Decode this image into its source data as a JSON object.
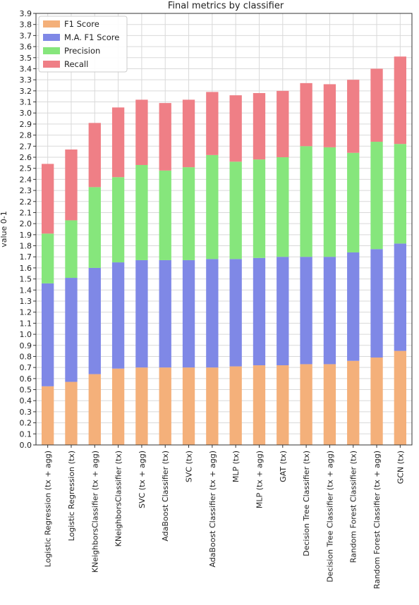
{
  "chart_data": {
    "type": "bar",
    "stacked": true,
    "title": "Final metrics by classifier",
    "xlabel": "",
    "ylabel": "value 0-1",
    "ylim": [
      0,
      3.9
    ],
    "ytick_step": 0.1,
    "grid": true,
    "legend_position": "top-left",
    "categories": [
      "Logistic Regression (tx + agg)",
      "Logistic Regression (tx)",
      "KNeighborsClassifier (tx + agg)",
      "KNeighborsClassifier (tx)",
      "SVC (tx + agg)",
      "AdaBoost Classifier (tx)",
      "SVC (tx)",
      "AdaBoost Classifier (tx + agg)",
      "MLP (tx)",
      "MLP (tx + agg)",
      "GAT (tx)",
      "Decision Tree Classifier (tx)",
      "Decision Tree Classifier (tx + agg)",
      "Random Forest Classifier (tx)",
      "Random Forest Classifier (tx + agg)",
      "GCN (tx)"
    ],
    "series": [
      {
        "name": "F1 Score",
        "color": "#f4b07a",
        "values": [
          0.53,
          0.57,
          0.64,
          0.69,
          0.7,
          0.7,
          0.7,
          0.7,
          0.71,
          0.72,
          0.72,
          0.73,
          0.73,
          0.76,
          0.79,
          0.85
        ]
      },
      {
        "name": "M.A. F1 Score",
        "color": "#7f88e6",
        "values": [
          0.93,
          0.94,
          0.96,
          0.96,
          0.97,
          0.97,
          0.97,
          0.98,
          0.97,
          0.97,
          0.98,
          0.97,
          0.97,
          0.98,
          0.98,
          0.97
        ]
      },
      {
        "name": "Precision",
        "color": "#86e67c",
        "values": [
          0.45,
          0.52,
          0.73,
          0.77,
          0.86,
          0.81,
          0.84,
          0.94,
          0.88,
          0.89,
          0.9,
          1.0,
          0.99,
          0.9,
          0.97,
          0.9
        ]
      },
      {
        "name": "Recall",
        "color": "#ef7f86",
        "values": [
          0.63,
          0.64,
          0.58,
          0.63,
          0.59,
          0.61,
          0.61,
          0.57,
          0.6,
          0.6,
          0.6,
          0.57,
          0.57,
          0.66,
          0.66,
          0.79
        ]
      }
    ]
  }
}
